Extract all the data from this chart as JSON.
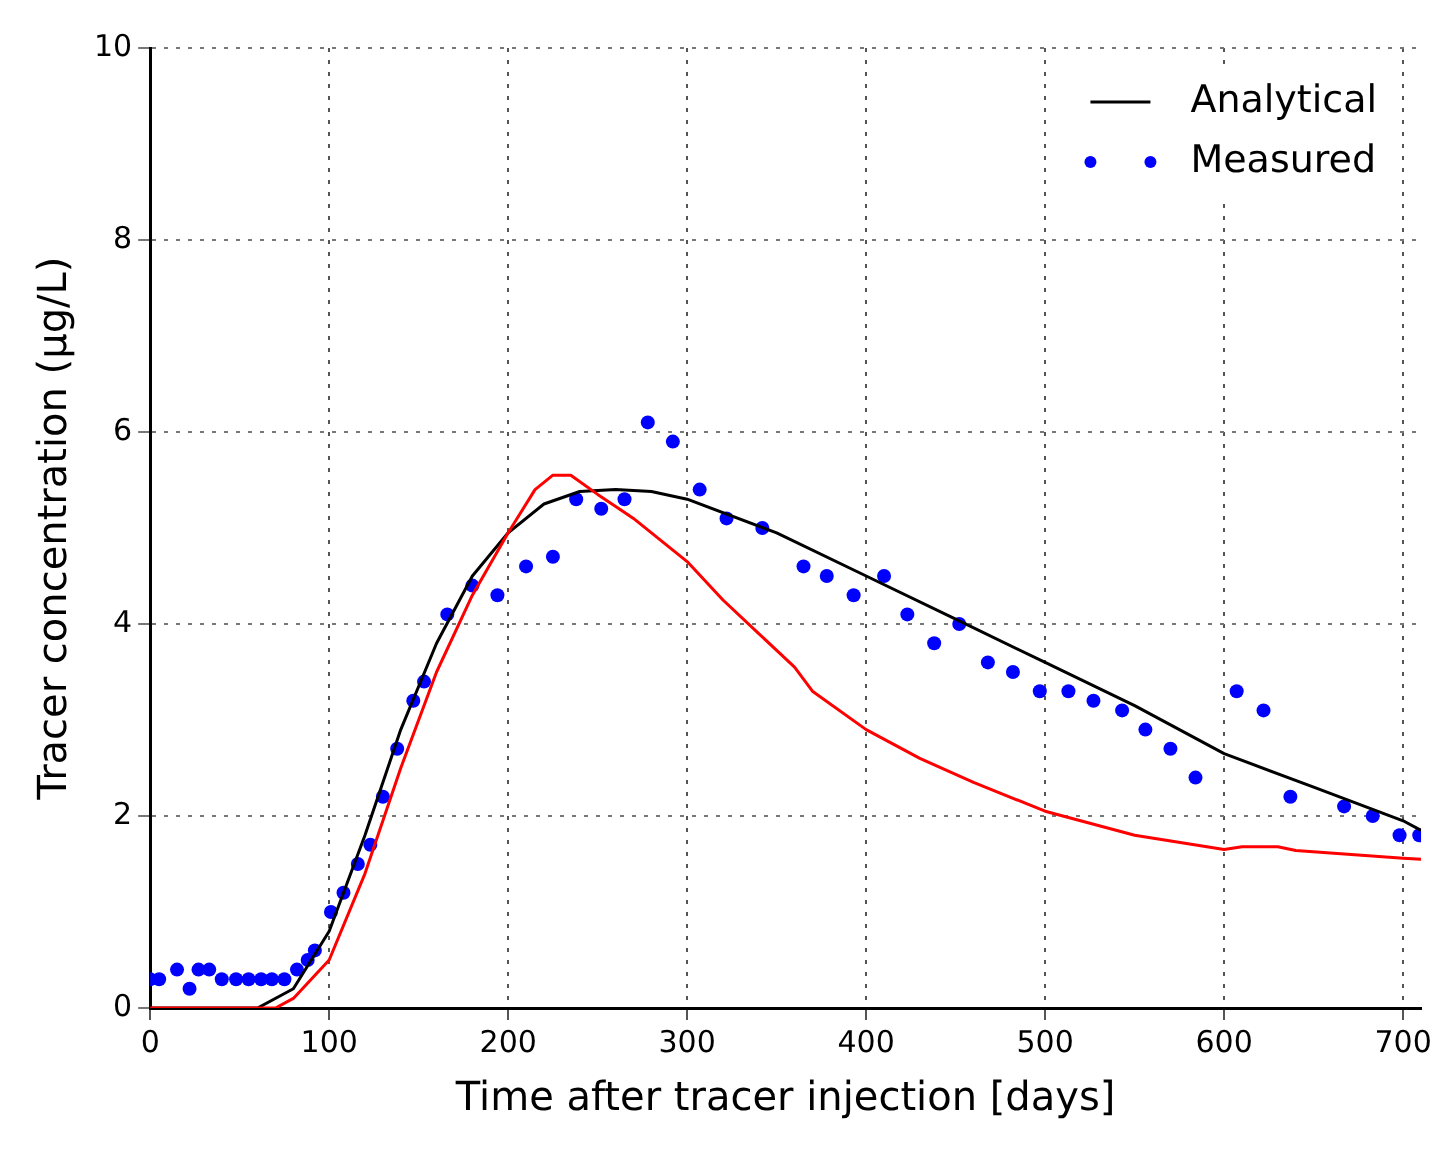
{
  "chart_data": {
    "type": "line",
    "xlabel": "Time after tracer injection [days]",
    "ylabel": "Tracer concentration (μg/L)",
    "xlim": [
      0,
      710
    ],
    "ylim": [
      0,
      10
    ],
    "xticks": [
      0,
      100,
      200,
      300,
      400,
      500,
      600,
      700
    ],
    "yticks": [
      0,
      2,
      4,
      6,
      8,
      10
    ],
    "grid": true,
    "legend": "top right",
    "series": [
      {
        "color": "#ff0000",
        "marker": "none",
        "x": [
          0,
          70,
          80,
          100,
          120,
          140,
          160,
          180,
          200,
          215,
          225,
          235,
          250,
          270,
          300,
          320,
          340,
          360,
          370,
          400,
          430,
          460,
          500,
          550,
          600,
          610,
          630,
          640,
          700,
          710
        ],
        "values": [
          0,
          0,
          0.1,
          0.5,
          1.4,
          2.5,
          3.5,
          4.3,
          4.95,
          5.4,
          5.55,
          5.55,
          5.35,
          5.1,
          4.65,
          4.25,
          3.9,
          3.55,
          3.3,
          2.9,
          2.6,
          2.35,
          2.05,
          1.8,
          1.65,
          1.68,
          1.68,
          1.64,
          1.56,
          1.55
        ]
      },
      {
        "name": "Analytical",
        "color": "#000000",
        "marker": "none",
        "x": [
          0,
          60,
          80,
          100,
          120,
          140,
          160,
          180,
          200,
          220,
          240,
          260,
          280,
          300,
          350,
          400,
          450,
          500,
          550,
          600,
          650,
          700,
          710
        ],
        "values": [
          0,
          0,
          0.2,
          0.8,
          1.8,
          2.9,
          3.8,
          4.5,
          4.95,
          5.25,
          5.38,
          5.4,
          5.38,
          5.3,
          4.95,
          4.5,
          4.05,
          3.6,
          3.15,
          2.65,
          2.3,
          1.95,
          1.85
        ]
      },
      {
        "name": "Measured",
        "color": "#0000ff",
        "type": "scatter",
        "marker": "circle",
        "x": [
          0,
          5,
          15,
          22,
          27,
          33,
          40,
          48,
          55,
          62,
          68,
          75,
          82,
          88,
          92,
          101,
          108,
          116,
          123,
          130,
          138,
          147,
          153,
          166,
          180,
          194,
          210,
          225,
          238,
          252,
          265,
          278,
          292,
          307,
          322,
          342,
          365,
          378,
          393,
          410,
          423,
          438,
          452,
          468,
          482,
          497,
          513,
          527,
          543,
          556,
          570,
          584,
          607,
          622,
          637,
          667,
          683,
          698,
          709
        ],
        "values": [
          0.3,
          0.3,
          0.4,
          0.2,
          0.4,
          0.4,
          0.3,
          0.3,
          0.3,
          0.3,
          0.3,
          0.3,
          0.4,
          0.5,
          0.6,
          1.0,
          1.2,
          1.5,
          1.7,
          2.2,
          2.7,
          3.2,
          3.4,
          4.1,
          4.4,
          4.3,
          4.6,
          4.7,
          5.3,
          5.2,
          5.3,
          6.1,
          5.9,
          5.4,
          5.1,
          5.0,
          4.6,
          4.5,
          4.3,
          4.5,
          4.1,
          3.8,
          4.0,
          3.6,
          3.5,
          3.3,
          3.3,
          3.2,
          3.1,
          2.9,
          2.7,
          2.4,
          3.3,
          3.1,
          2.2,
          2.1,
          2.0,
          1.8,
          1.8
        ]
      }
    ]
  }
}
